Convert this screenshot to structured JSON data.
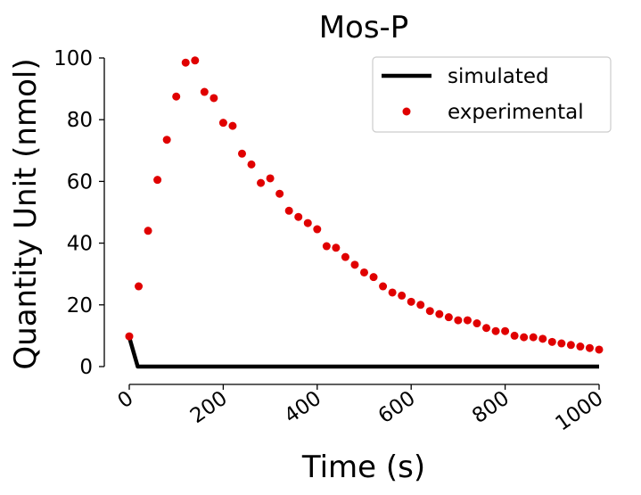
{
  "chart_data": {
    "type": "scatter",
    "title": "Mos-P",
    "xlabel": "Time (s)",
    "ylabel": "Quantity Unit (nmol)",
    "xlim": [
      0,
      1000
    ],
    "ylim": [
      0,
      100
    ],
    "x_ticks": [
      0,
      200,
      400,
      600,
      800,
      1000
    ],
    "y_ticks": [
      0,
      20,
      40,
      60,
      80,
      100
    ],
    "grid": false,
    "legend_position": "top-right",
    "series": [
      {
        "name": "simulated",
        "kind": "line",
        "color": "#000000",
        "x": [
          0,
          18,
          1000
        ],
        "y": [
          9.5,
          0,
          0
        ]
      },
      {
        "name": "experimental",
        "kind": "scatter",
        "color": "#e00000",
        "x": [
          0,
          20,
          40,
          60,
          80,
          100,
          120,
          140,
          160,
          180,
          200,
          220,
          240,
          260,
          280,
          300,
          320,
          340,
          360,
          380,
          400,
          420,
          440,
          460,
          480,
          500,
          520,
          540,
          560,
          580,
          600,
          620,
          640,
          660,
          680,
          700,
          720,
          740,
          760,
          780,
          800,
          820,
          840,
          860,
          880,
          900,
          920,
          940,
          960,
          980,
          1000
        ],
        "y": [
          9.8,
          26,
          44,
          60.5,
          73.5,
          87.5,
          98.5,
          99.2,
          89,
          87,
          79,
          78,
          69,
          65.5,
          59.5,
          61,
          56,
          50.5,
          48.5,
          46.5,
          44.5,
          39,
          38.5,
          35.5,
          33,
          30.5,
          29,
          26,
          24,
          23,
          21,
          20,
          18,
          17,
          16,
          15,
          15,
          14,
          12.5,
          11.5,
          11.5,
          10,
          9.5,
          9.5,
          9,
          8,
          7.5,
          7,
          6.5,
          6,
          5.5
        ]
      }
    ]
  }
}
